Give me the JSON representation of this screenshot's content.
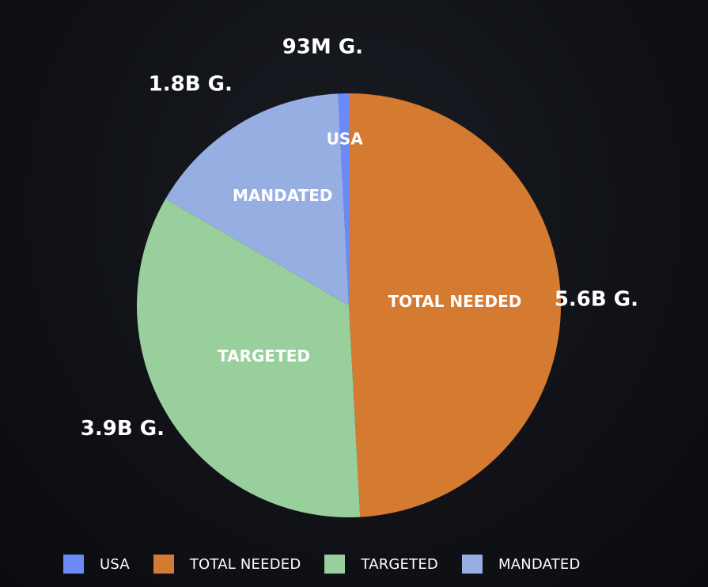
{
  "chart_data": {
    "type": "pie",
    "title": "",
    "categories": [
      "USA",
      "TOTAL NEEDED",
      "TARGETED",
      "MANDATED"
    ],
    "values": [
      0.093,
      5.6,
      3.9,
      1.8
    ],
    "value_labels": [
      "93M G.",
      "5.6B G.",
      "3.9B G.",
      "1.8B G."
    ],
    "colors": [
      "#6b8af7",
      "#d57a31",
      "#98cf9c",
      "#97aee3"
    ],
    "legend_position": "bottom"
  }
}
